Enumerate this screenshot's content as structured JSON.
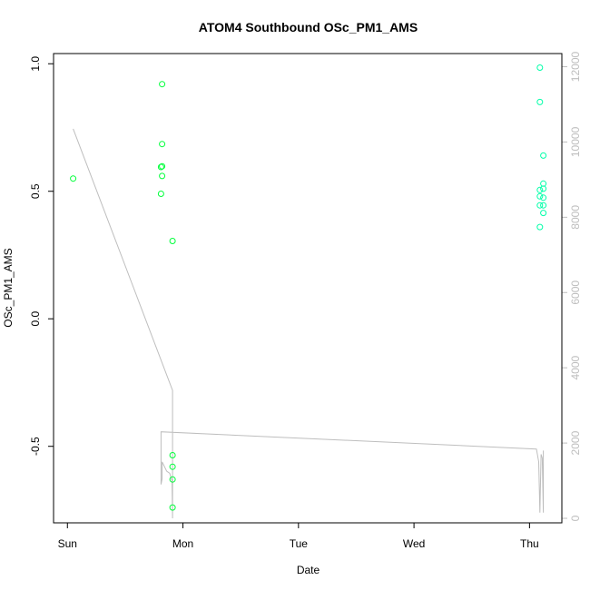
{
  "chart_data": {
    "type": "scatter",
    "title": "ATOM4 Southbound OSc_PM1_AMS",
    "xlabel": "Date",
    "ylabel": "OSc_PM1_AMS",
    "x_unit": "days since Sunday 00:00",
    "x_ticks": [
      {
        "value": 0,
        "label": "Sun"
      },
      {
        "value": 1,
        "label": "Mon"
      },
      {
        "value": 2,
        "label": "Tue"
      },
      {
        "value": 3,
        "label": "Wed"
      },
      {
        "value": 4,
        "label": "Thu"
      }
    ],
    "xlim": [
      -0.12,
      4.28
    ],
    "ylim": [
      -0.8,
      1.04
    ],
    "y_ticks": [
      {
        "value": -0.5,
        "label": "-0.5"
      },
      {
        "value": 0.0,
        "label": "0.0"
      },
      {
        "value": 0.5,
        "label": "0.5"
      },
      {
        "value": 1.0,
        "label": "1.0"
      }
    ],
    "y2lim": [
      -120,
      12350
    ],
    "y2_ticks": [
      {
        "value": 0,
        "label": "0"
      },
      {
        "value": 2000,
        "label": "2000"
      },
      {
        "value": 4000,
        "label": "4000"
      },
      {
        "value": 6000,
        "label": "6000"
      },
      {
        "value": 8000,
        "label": "8000"
      },
      {
        "value": 10000,
        "label": "10000"
      },
      {
        "value": 12000,
        "label": "12000"
      }
    ],
    "series": [
      {
        "name": "OSc_PM1_AMS",
        "type": "scatter",
        "axis": "left",
        "marker": "open-circle",
        "points": [
          {
            "x": 0.05,
            "y": 0.55,
            "color": "#00ff3a"
          },
          {
            "x": 0.82,
            "y": 0.92,
            "color": "#00ff3a"
          },
          {
            "x": 0.82,
            "y": 0.685,
            "color": "#00ff3a"
          },
          {
            "x": 0.81,
            "y": 0.595,
            "color": "#00ff3a"
          },
          {
            "x": 0.82,
            "y": 0.598,
            "color": "#00ff3a"
          },
          {
            "x": 0.82,
            "y": 0.56,
            "color": "#00ff3a"
          },
          {
            "x": 0.81,
            "y": 0.49,
            "color": "#00ff3a"
          },
          {
            "x": 0.91,
            "y": 0.305,
            "color": "#00ff3a"
          },
          {
            "x": 0.91,
            "y": -0.535,
            "color": "#00ff3a"
          },
          {
            "x": 0.91,
            "y": -0.58,
            "color": "#00ff3a"
          },
          {
            "x": 0.91,
            "y": -0.63,
            "color": "#00ff3a"
          },
          {
            "x": 0.91,
            "y": -0.74,
            "color": "#00ff3a"
          },
          {
            "x": 4.09,
            "y": 0.985,
            "color": "#00ffa8"
          },
          {
            "x": 4.09,
            "y": 0.85,
            "color": "#00ffa8"
          },
          {
            "x": 4.12,
            "y": 0.64,
            "color": "#00ffa8"
          },
          {
            "x": 4.12,
            "y": 0.53,
            "color": "#00ffa8"
          },
          {
            "x": 4.09,
            "y": 0.505,
            "color": "#00ffa8"
          },
          {
            "x": 4.12,
            "y": 0.51,
            "color": "#00ffa8"
          },
          {
            "x": 4.09,
            "y": 0.48,
            "color": "#00ffa8"
          },
          {
            "x": 4.12,
            "y": 0.475,
            "color": "#00ffa8"
          },
          {
            "x": 4.09,
            "y": 0.445,
            "color": "#00ffa8"
          },
          {
            "x": 4.12,
            "y": 0.445,
            "color": "#00ffa8"
          },
          {
            "x": 4.12,
            "y": 0.415,
            "color": "#00ffa8"
          },
          {
            "x": 4.09,
            "y": 0.36,
            "color": "#00ffa8"
          }
        ]
      },
      {
        "name": "",
        "type": "line",
        "axis": "right",
        "color": "#bebebe",
        "x": [
          0.05,
          0.91,
          0.91,
          0.905,
          0.885,
          0.86,
          0.82,
          0.82,
          0.81,
          0.81,
          4.06,
          4.08,
          4.09,
          4.1,
          4.11,
          4.12,
          4.12
        ],
        "y": [
          10350,
          3400,
          0,
          1000,
          1200,
          1250,
          1500,
          1050,
          900,
          2300,
          1840,
          1500,
          150,
          1700,
          1600,
          150,
          1800
        ]
      }
    ]
  }
}
